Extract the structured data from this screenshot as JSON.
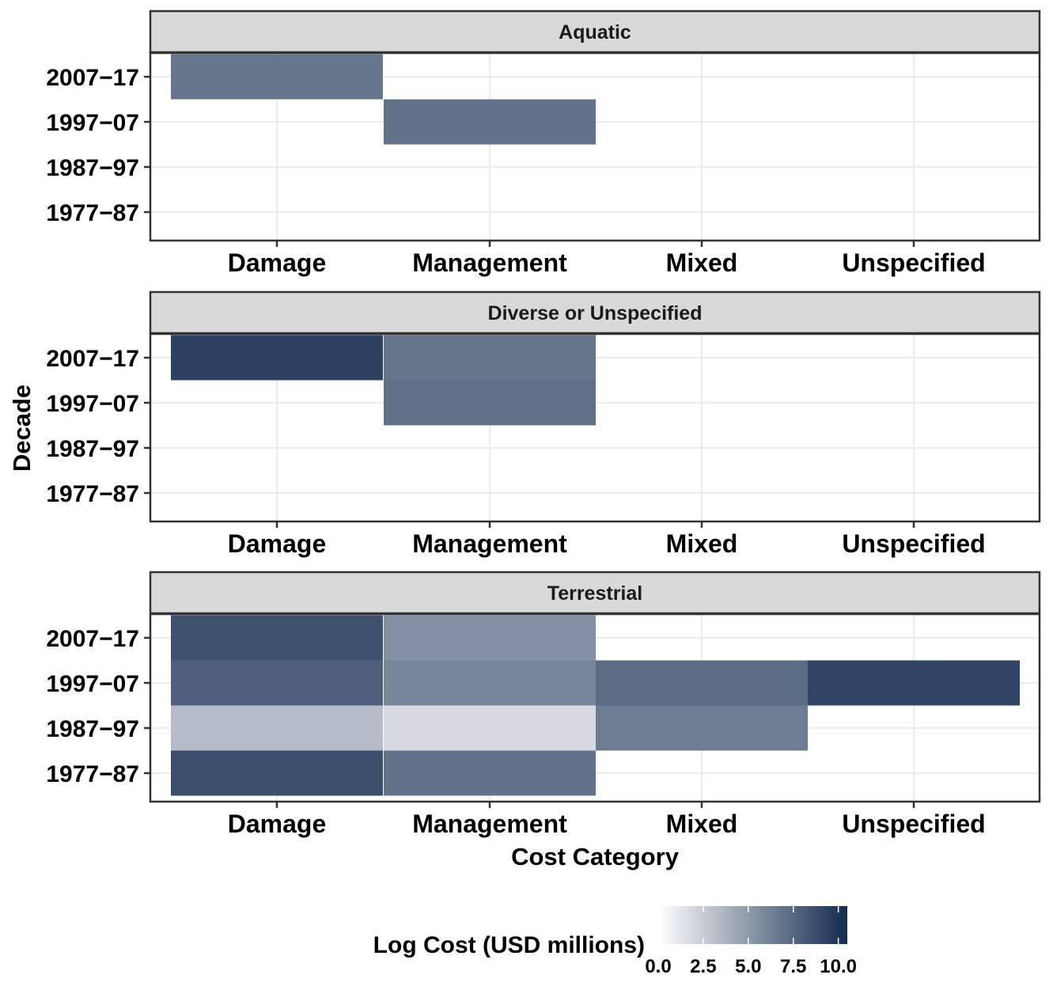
{
  "chart_data": {
    "type": "heatmap",
    "xlabel": "Cost Category",
    "ylabel": "Decade",
    "categories": [
      "Damage",
      "Management",
      "Mixed",
      "Unspecified"
    ],
    "decades": [
      "2007−17",
      "1997−07",
      "1987−97",
      "1977−87"
    ],
    "facets": [
      {
        "name": "Aquatic",
        "cells": [
          {
            "category": "Damage",
            "decade": "2007−17",
            "value": 6.8
          },
          {
            "category": "Management",
            "decade": "1997−07",
            "value": 7.0
          }
        ]
      },
      {
        "name": "Diverse or Unspecified",
        "cells": [
          {
            "category": "Damage",
            "decade": "2007−17",
            "value": 9.3
          },
          {
            "category": "Management",
            "decade": "2007−17",
            "value": 6.9
          },
          {
            "category": "Management",
            "decade": "1997−07",
            "value": 7.1
          }
        ]
      },
      {
        "name": "Terrestrial",
        "cells": [
          {
            "category": "Damage",
            "decade": "2007−17",
            "value": 8.6
          },
          {
            "category": "Management",
            "decade": "2007−17",
            "value": 5.5
          },
          {
            "category": "Damage",
            "decade": "1997−07",
            "value": 7.9
          },
          {
            "category": "Management",
            "decade": "1997−07",
            "value": 6.0
          },
          {
            "category": "Mixed",
            "decade": "1997−07",
            "value": 7.3
          },
          {
            "category": "Unspecified",
            "decade": "1997−07",
            "value": 9.2
          },
          {
            "category": "Damage",
            "decade": "1987−97",
            "value": 3.3
          },
          {
            "category": "Management",
            "decade": "1987−97",
            "value": 1.8
          },
          {
            "category": "Mixed",
            "decade": "1987−97",
            "value": 6.5
          },
          {
            "category": "Damage",
            "decade": "1977−87",
            "value": 8.7
          },
          {
            "category": "Management",
            "decade": "1977−87",
            "value": 7.0
          }
        ]
      }
    ],
    "legend": {
      "title": "Log Cost (USD millions)",
      "ticks": [
        "0.0",
        "2.5",
        "5.0",
        "7.5",
        "10.0"
      ],
      "tick_values": [
        0,
        2.5,
        5,
        7.5,
        10
      ],
      "range": [
        0,
        10.5
      ],
      "low_color": "#ffffff",
      "high_color": "#132b4f",
      "placement": "bottom"
    },
    "grid": true
  }
}
